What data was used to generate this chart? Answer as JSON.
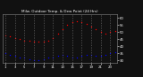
{
  "title": "Milw. Outdoor Temp. & Dew Point (24 Hrs)",
  "bg_color": "#111111",
  "plot_bg": "#111111",
  "grid_color": "#666666",
  "temp_color": "#ff0000",
  "dew_color": "#0000ff",
  "black_color": "#000000",
  "temp_data": [
    48,
    47,
    46,
    45,
    44,
    44,
    43,
    43,
    43,
    44,
    46,
    49,
    52,
    55,
    57,
    58,
    57,
    56,
    54,
    52,
    50,
    49,
    50,
    51
  ],
  "dew_data": [
    35,
    34,
    33,
    32,
    32,
    31,
    30,
    30,
    31,
    32,
    32,
    33,
    34,
    33,
    32,
    32,
    33,
    34,
    34,
    33,
    33,
    34,
    35,
    36
  ],
  "hours": [
    1,
    2,
    3,
    4,
    5,
    6,
    7,
    8,
    9,
    10,
    11,
    12,
    13,
    14,
    15,
    16,
    17,
    18,
    19,
    20,
    21,
    22,
    23,
    24
  ],
  "xlabels": [
    "1",
    "3",
    "5",
    "7",
    "9",
    "11",
    "13",
    "15",
    "17",
    "19",
    "21",
    "23"
  ],
  "xtick_pos": [
    1,
    3,
    5,
    7,
    9,
    11,
    13,
    15,
    17,
    19,
    21,
    23
  ],
  "ylim": [
    28,
    63
  ],
  "yticks": [
    30,
    35,
    40,
    45,
    50,
    55,
    60
  ],
  "ytick_labels": [
    "30",
    "35",
    "40",
    "45",
    "50",
    "55",
    "60"
  ],
  "vgrid_pos": [
    1,
    3,
    5,
    7,
    9,
    11,
    13,
    15,
    17,
    19,
    21,
    23
  ],
  "marker_size": 2,
  "text_color": "#ffffff"
}
